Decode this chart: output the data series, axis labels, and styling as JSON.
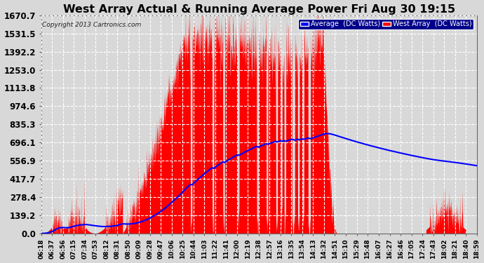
{
  "title": "West Array Actual & Running Average Power Fri Aug 30 19:15",
  "copyright": "Copyright 2013 Cartronics.com",
  "yticks": [
    0.0,
    139.2,
    278.4,
    417.7,
    556.9,
    696.1,
    835.3,
    974.6,
    1113.8,
    1253.0,
    1392.2,
    1531.5,
    1670.7
  ],
  "ymax": 1670.7,
  "legend_avg": "Average  (DC Watts)",
  "legend_west": "West Array  (DC Watts)",
  "avg_color": "#0000ff",
  "west_color": "#ff0000",
  "background_color": "#d8d8d8",
  "title_color": "#000000",
  "grid_color": "#ffffff",
  "title_fontsize": 11.5,
  "xlabel_fontsize": 6.5,
  "ylabel_fontsize": 8.5,
  "xtick_labels": [
    "06:18",
    "06:37",
    "06:56",
    "07:15",
    "07:34",
    "07:53",
    "08:12",
    "08:31",
    "08:50",
    "09:09",
    "09:28",
    "09:47",
    "10:06",
    "10:25",
    "10:44",
    "11:03",
    "11:22",
    "11:41",
    "12:00",
    "12:19",
    "12:38",
    "12:57",
    "13:16",
    "13:35",
    "13:54",
    "14:13",
    "14:32",
    "14:51",
    "15:10",
    "15:29",
    "15:48",
    "16:07",
    "16:27",
    "16:46",
    "17:05",
    "17:24",
    "17:43",
    "18:02",
    "18:21",
    "18:40",
    "18:59"
  ]
}
